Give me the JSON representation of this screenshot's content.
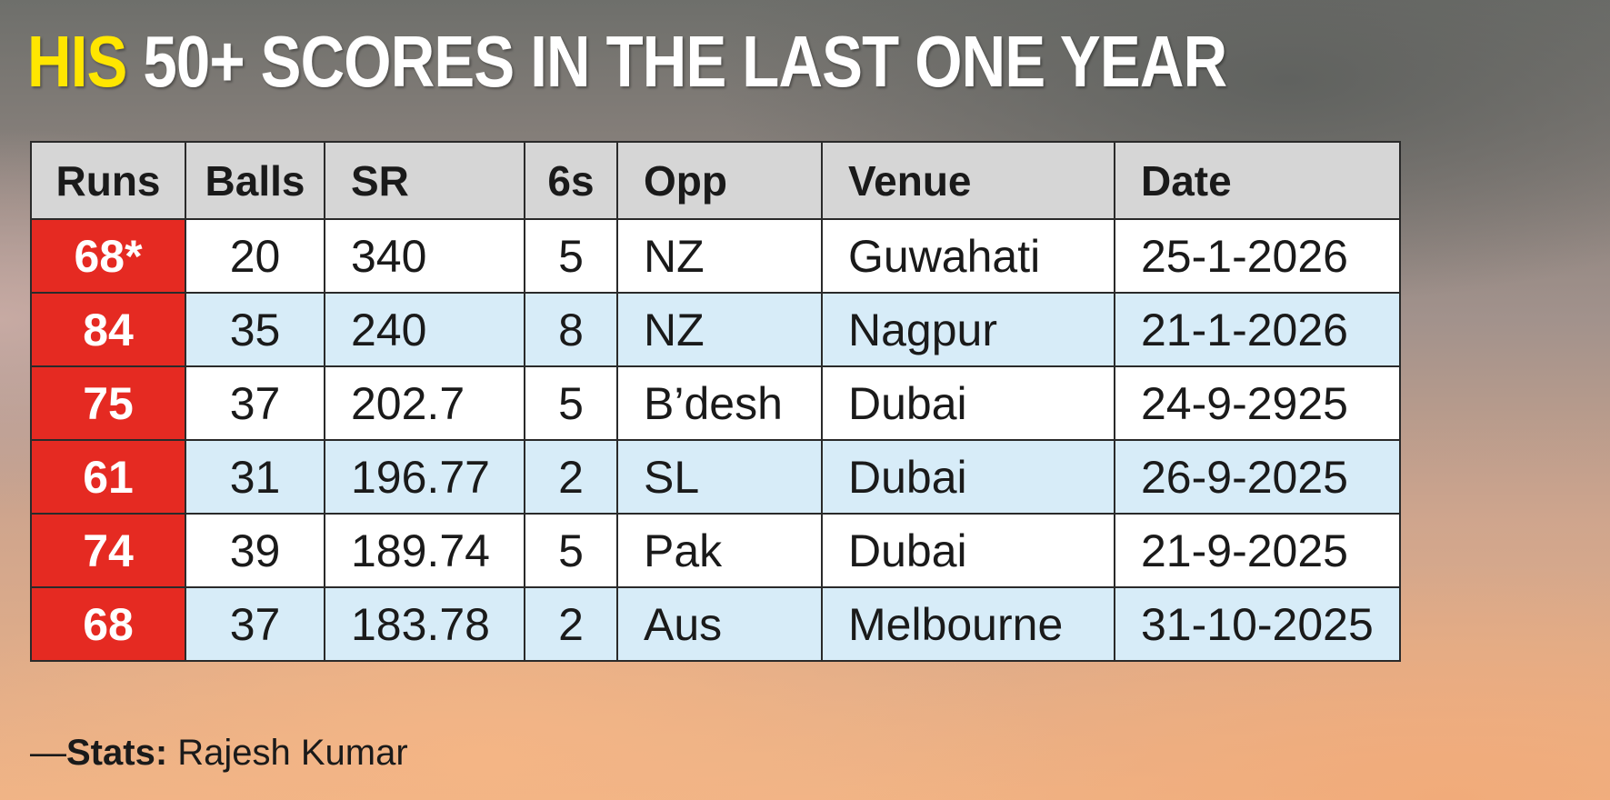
{
  "headline": {
    "highlight": "HIS",
    "rest": " 50+ SCORES IN THE LAST ONE YEAR"
  },
  "table": {
    "headers": [
      "Runs",
      "Balls",
      "SR",
      "6s",
      "Opp",
      "Venue",
      "Date"
    ],
    "rows": [
      [
        "68*",
        "20",
        "340",
        "5",
        "NZ",
        "Guwahati",
        "25-1-2026"
      ],
      [
        "84",
        "35",
        "240",
        "8",
        "NZ",
        "Nagpur",
        "21-1-2026"
      ],
      [
        "75",
        "37",
        "202.7",
        "5",
        "B’desh",
        "Dubai",
        "24-9-2925"
      ],
      [
        "61",
        "31",
        "196.77",
        "2",
        "SL",
        "Dubai",
        "26-9-2025"
      ],
      [
        "74",
        "39",
        "189.74",
        "5",
        "Pak",
        "Dubai",
        "21-9-2025"
      ],
      [
        "68",
        "37",
        "183.78",
        "2",
        "Aus",
        "Melbourne",
        "31-10-2025"
      ]
    ]
  },
  "credit": {
    "dash": "—",
    "label": "Stats:",
    "name": " Rajesh Kumar"
  },
  "colors": {
    "highlight_yellow": "#ffe600",
    "runs_red": "#e52a22",
    "header_gray": "#d6d6d6",
    "row_blue": "#d7ecf8",
    "row_white": "#ffffff"
  }
}
